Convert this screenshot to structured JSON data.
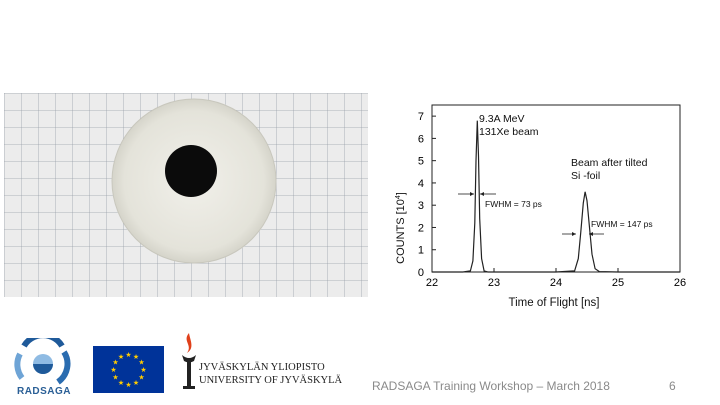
{
  "photo": {
    "icon": "foil-sample-photo"
  },
  "chart_data": {
    "type": "line",
    "xlabel": "Time of Flight [ns]",
    "ylabel": "COUNTS [10⁴]",
    "ylabel_main": "COUNTS [10",
    "ylabel_exp": "4",
    "ylabel_close": "]",
    "xlim": [
      22,
      26
    ],
    "ylim": [
      0,
      7.5
    ],
    "xticks": [
      "22",
      "23",
      "24",
      "25",
      "26"
    ],
    "yticks": [
      "0",
      "1",
      "2",
      "3",
      "4",
      "5",
      "6",
      "7"
    ],
    "grid": false,
    "series": [
      {
        "x": [
          22.0,
          22.5,
          22.62,
          22.66,
          22.69,
          22.71,
          22.73,
          22.75,
          22.77,
          22.8,
          22.84,
          22.9,
          24.0,
          24.3,
          24.36,
          24.4,
          24.44,
          24.47,
          24.5,
          24.54,
          24.58,
          24.63,
          24.7,
          25.0,
          26.0
        ],
        "y": [
          0,
          0,
          0.05,
          0.5,
          2.2,
          5.0,
          6.8,
          5.2,
          2.4,
          0.6,
          0.05,
          0,
          0,
          0.05,
          0.6,
          1.8,
          3.1,
          3.6,
          3.2,
          2.0,
          0.8,
          0.15,
          0.02,
          0,
          0
        ]
      }
    ],
    "annotations": {
      "peak1_line1": "9.3A MeV",
      "peak1_line2": "131Xe beam",
      "peak2_line1": "Beam after tilted",
      "peak2_line2": "Si -foil",
      "fwhm1": "FWHM = 73 ps",
      "fwhm2": "FWHM = 147 ps"
    }
  },
  "logos": {
    "radsaga": "RADSAGA",
    "jyu_line1": "JYVÄSKYLÄN YLIOPISTO",
    "jyu_line2": "UNIVERSITY OF JYVÄSKYLÄ"
  },
  "footer": {
    "text": "RADSAGA Training Workshop – March 2018",
    "page": "6"
  }
}
